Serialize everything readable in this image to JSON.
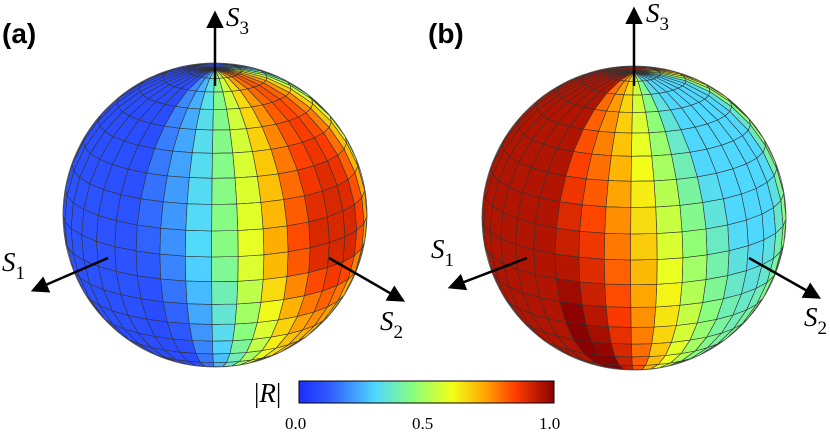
{
  "panels": [
    {
      "label": "(a)",
      "axes": [
        {
          "symbol": "S",
          "sub": "1"
        },
        {
          "symbol": "S",
          "sub": "2"
        },
        {
          "symbol": "S",
          "sub": "3"
        }
      ]
    },
    {
      "label": "(b)",
      "axes": [
        {
          "symbol": "S",
          "sub": "1"
        },
        {
          "symbol": "S",
          "sub": "2"
        },
        {
          "symbol": "S",
          "sub": "3"
        }
      ]
    }
  ],
  "colorbar": {
    "label": "R",
    "bar": "|",
    "ticks": [
      "0.0",
      "0.5",
      "1.0"
    ],
    "range": [
      0,
      1
    ],
    "colormap": [
      "#1f3fff",
      "#3a78ff",
      "#5fe8ff",
      "#9dff5a",
      "#ffff00",
      "#ffa500",
      "#ff3a00",
      "#8b0000"
    ]
  },
  "colors": {
    "grid": "#333333",
    "axis": "#000000"
  }
}
